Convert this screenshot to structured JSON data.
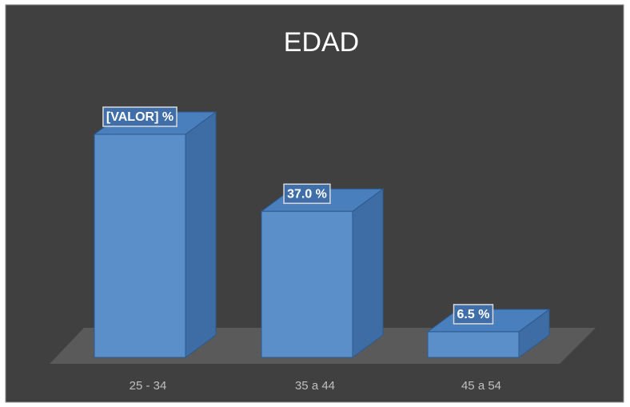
{
  "chart_data": {
    "type": "bar3d",
    "title": "EDAD",
    "categories": [
      "25 - 34",
      "35 a 44",
      "45 a 54"
    ],
    "values": [
      56.5,
      37.0,
      6.5
    ],
    "value_labels": [
      "[VALOR] %",
      "37.0 %",
      "6.5 %"
    ],
    "color": "#5b8fca"
  }
}
